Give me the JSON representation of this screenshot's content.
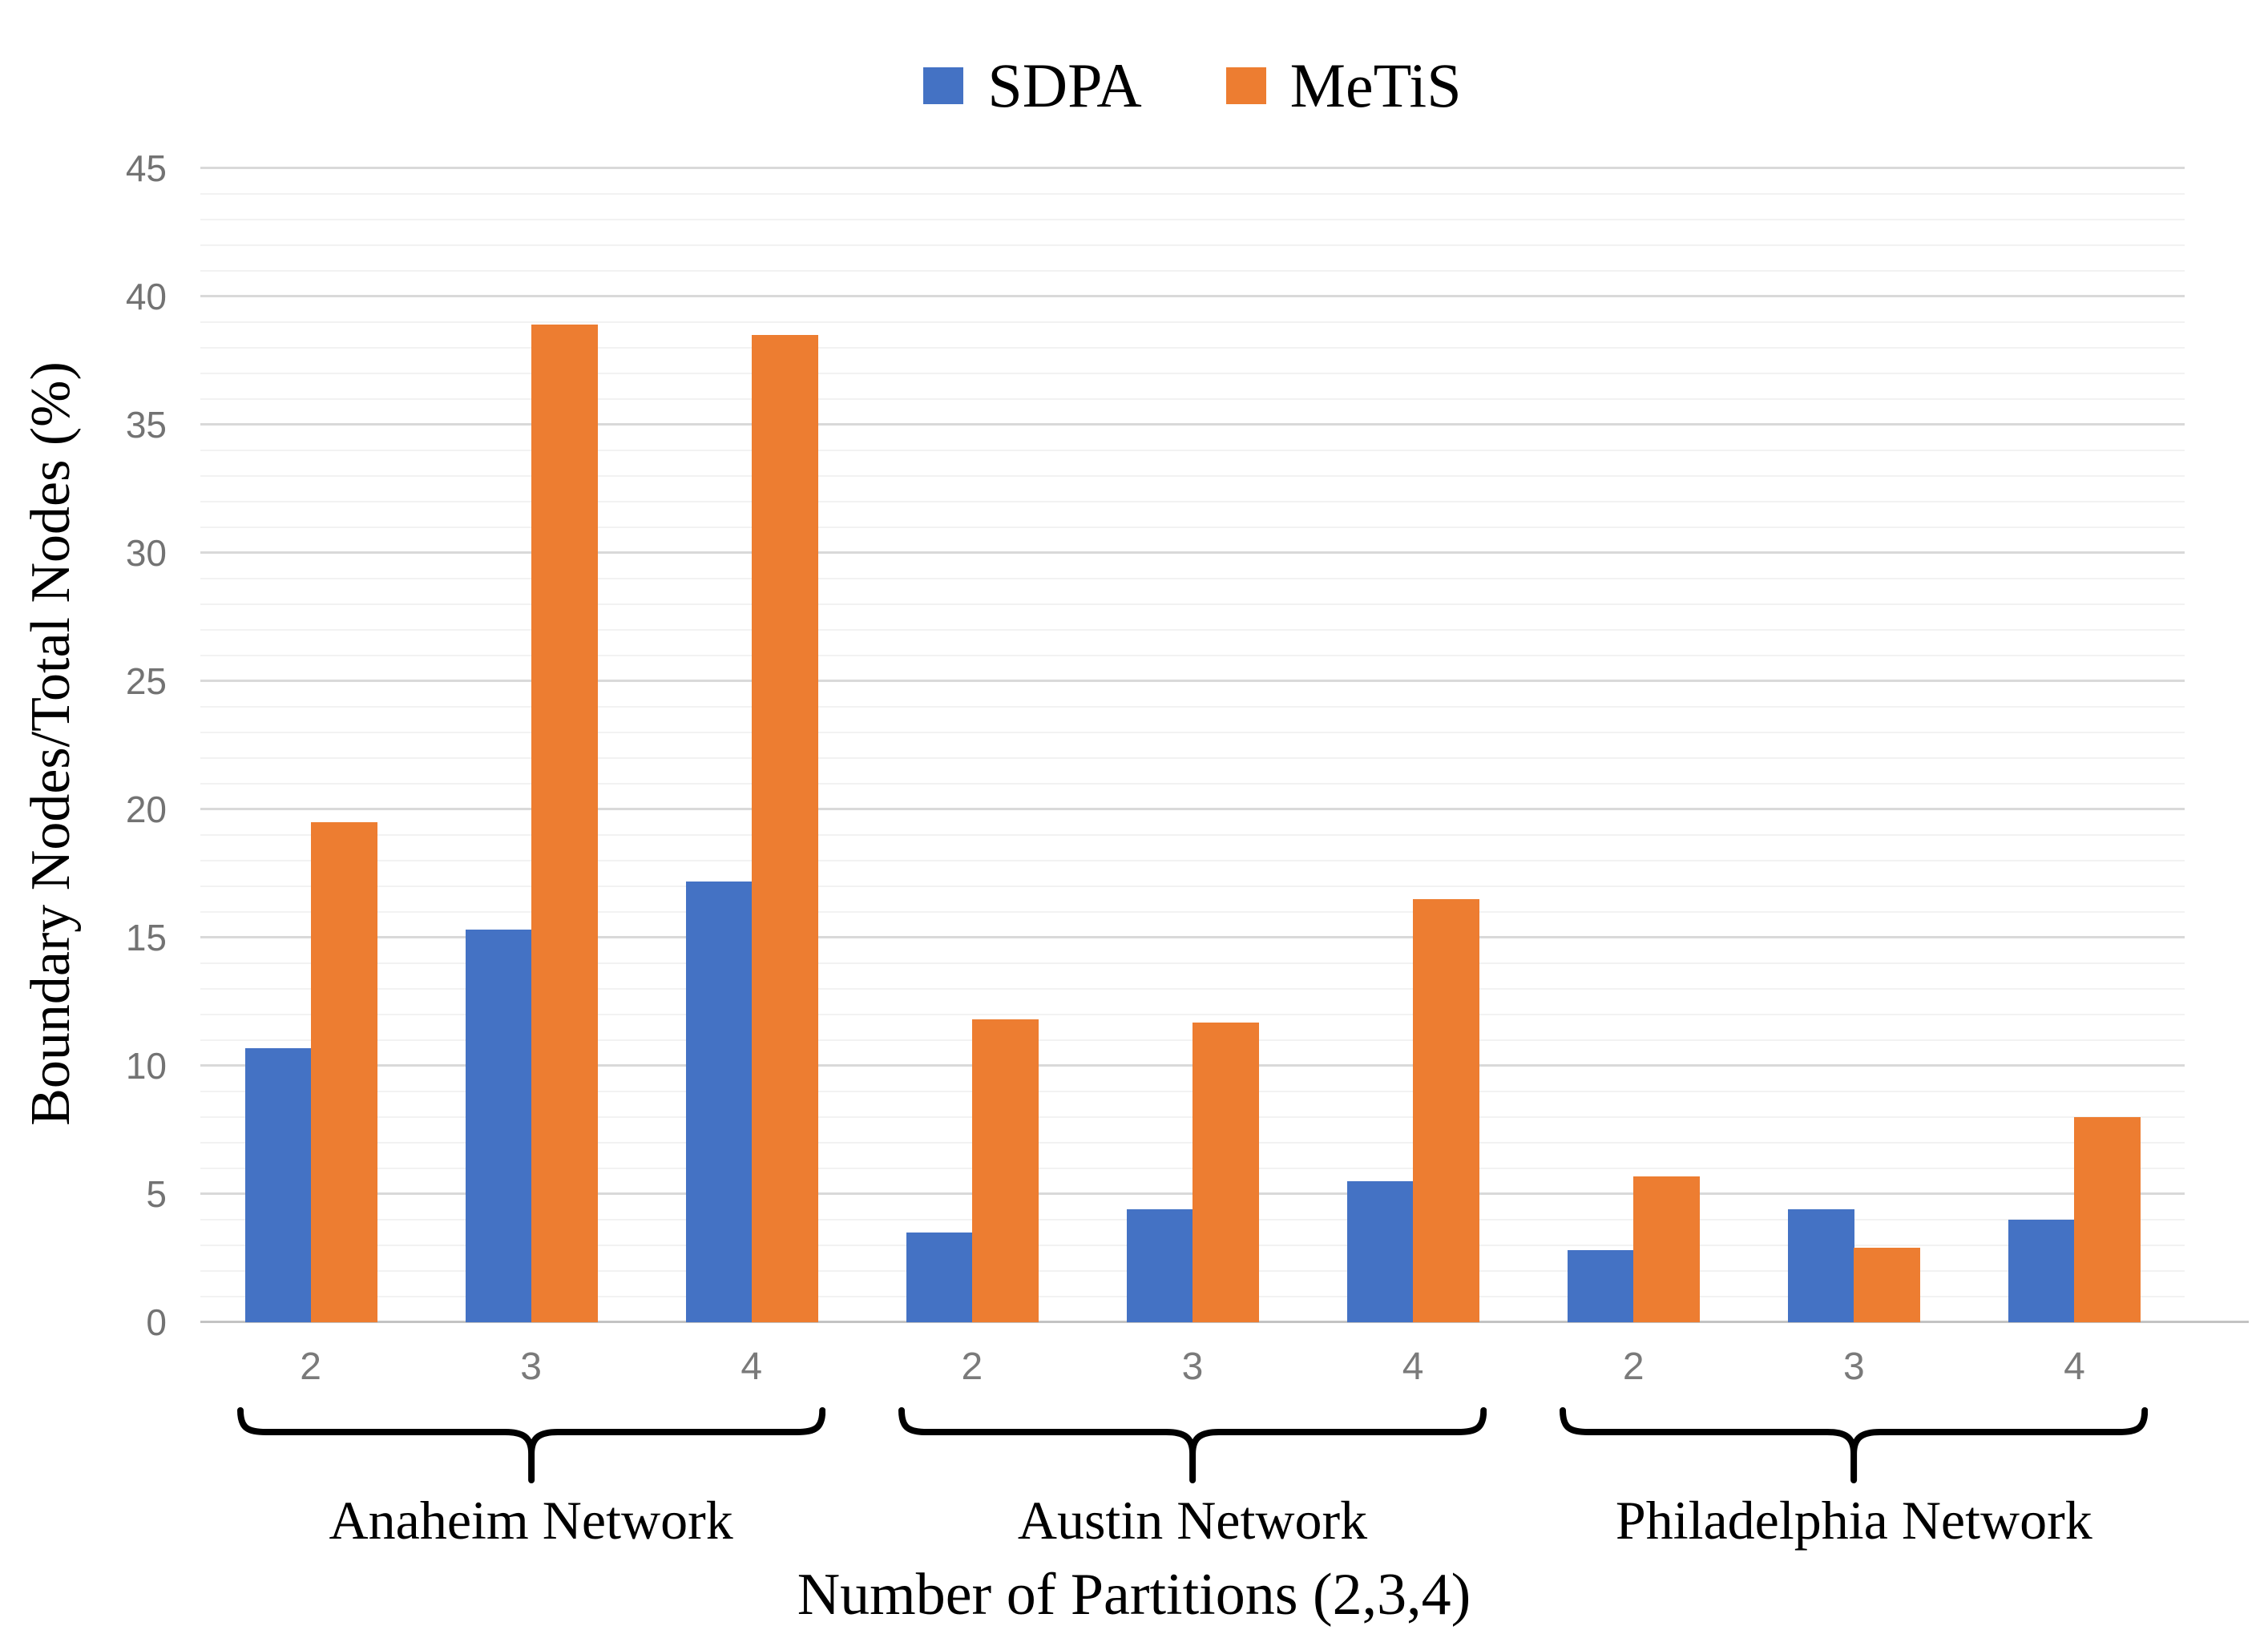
{
  "chart_data": {
    "type": "bar",
    "title": "",
    "ylabel": "Boundary Nodes/Total Nodes (%)",
    "xlabel": "Number of Partitions (2,3,4)",
    "ylim": [
      0,
      45
    ],
    "y_major_step": 5,
    "y_minor_step": 1,
    "y_tick_labels": [
      "0",
      "5",
      "10",
      "15",
      "20",
      "25",
      "30",
      "35",
      "40",
      "45"
    ],
    "grid": true,
    "legend_position": "top-center",
    "series_names": [
      "SDPA",
      "MeTiS"
    ],
    "colors": {
      "SDPA": "#4472C4",
      "MeTiS": "#ED7D31"
    },
    "groups": [
      {
        "label": "Anaheim Network",
        "partitions": [
          "2",
          "3",
          "4"
        ],
        "SDPA": [
          10.7,
          15.3,
          17.2
        ],
        "MeTiS": [
          19.5,
          38.9,
          38.5
        ]
      },
      {
        "label": "Austin Network",
        "partitions": [
          "2",
          "3",
          "4"
        ],
        "SDPA": [
          3.5,
          4.4,
          5.5
        ],
        "MeTiS": [
          11.8,
          11.7,
          16.5
        ]
      },
      {
        "label": "Philadelphia Network",
        "partitions": [
          "2",
          "3",
          "4"
        ],
        "SDPA": [
          2.8,
          4.4,
          4.0
        ],
        "MeTiS": [
          5.7,
          2.9,
          8.0
        ]
      }
    ]
  },
  "legend": {
    "items": [
      {
        "label": "SDPA",
        "color": "#4472C4"
      },
      {
        "label": "MeTiS",
        "color": "#ED7D31"
      }
    ]
  },
  "axes": {
    "y_title": "Boundary Nodes/Total Nodes (%)",
    "x_title": "Number of Partitions (2,3,4)"
  }
}
